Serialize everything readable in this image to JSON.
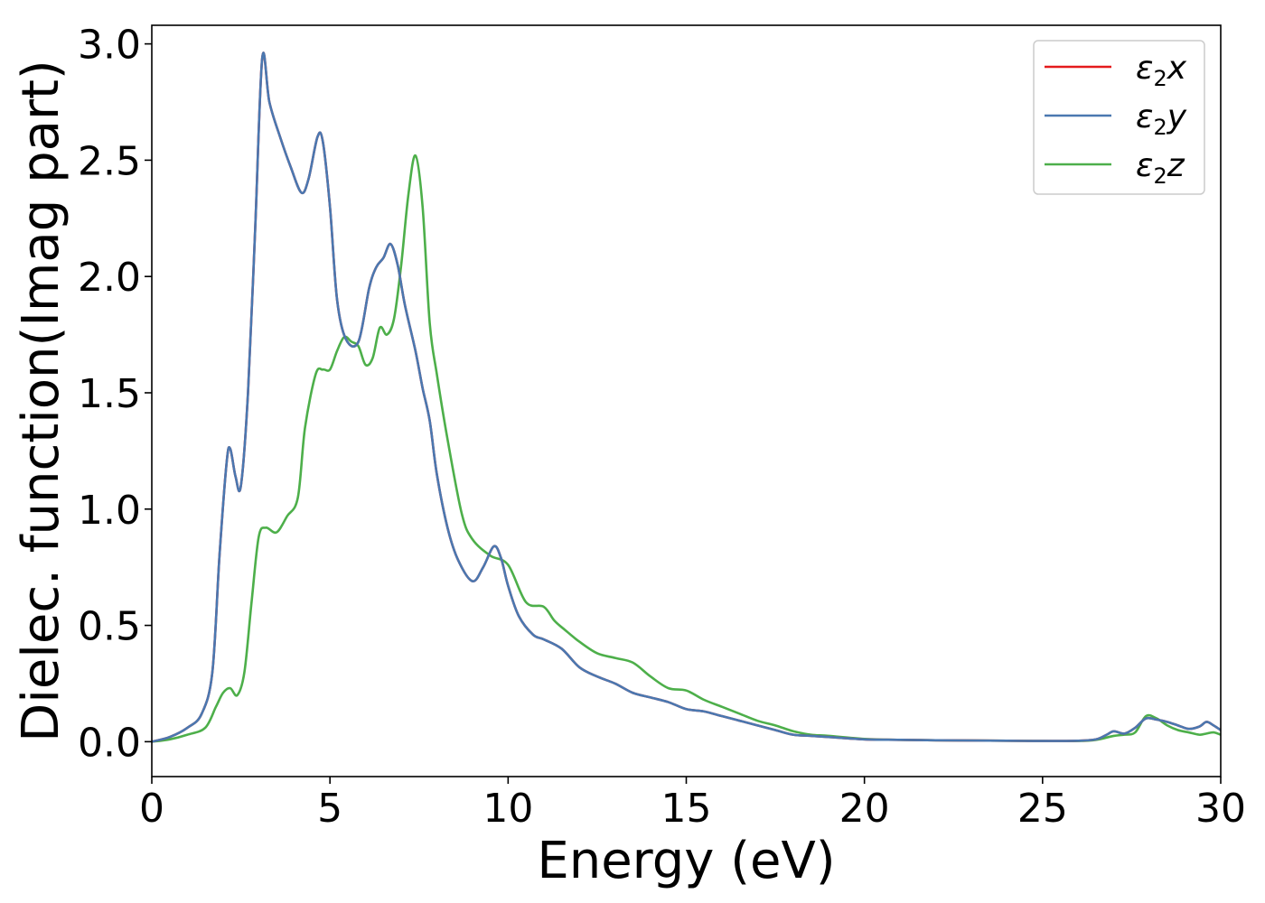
{
  "chart_data": {
    "type": "line",
    "title": "",
    "xlabel": "Energy (eV)",
    "ylabel": "Dielec. function(Imag part)",
    "xlim": [
      0,
      30
    ],
    "ylim": [
      -0.15,
      3.08
    ],
    "xticks": [
      0,
      5,
      10,
      15,
      20,
      25,
      30
    ],
    "xtick_labels": [
      "0",
      "5",
      "10",
      "15",
      "20",
      "25",
      "30"
    ],
    "yticks": [
      0.0,
      0.5,
      1.0,
      1.5,
      2.0,
      2.5,
      3.0
    ],
    "ytick_labels": [
      "0.0",
      "0.5",
      "1.0",
      "1.5",
      "2.0",
      "2.5",
      "3.0"
    ],
    "grid": false,
    "legend_position": "top-right",
    "series": [
      {
        "name": "ε₂x",
        "legend_base": "ε",
        "legend_sub": "2",
        "legend_var": "x",
        "color": "#e41a1c",
        "x": [
          0,
          0.5,
          1.0,
          1.4,
          1.7,
          1.9,
          2.1,
          2.2,
          2.35,
          2.5,
          2.7,
          2.9,
          3.1,
          3.3,
          3.6,
          3.9,
          4.2,
          4.4,
          4.65,
          4.8,
          5.0,
          5.2,
          5.45,
          5.8,
          6.1,
          6.3,
          6.5,
          6.7,
          6.9,
          7.1,
          7.4,
          7.6,
          7.8,
          8.0,
          8.3,
          8.6,
          9.0,
          9.3,
          9.6,
          9.8,
          10.0,
          10.3,
          10.7,
          11.0,
          11.5,
          12.0,
          12.5,
          13.0,
          13.5,
          14.0,
          14.5,
          15.0,
          15.5,
          16.0,
          16.5,
          17.0,
          17.5,
          18.0,
          18.5,
          19.0,
          20.0,
          21.0,
          22.0,
          23.0,
          24.0,
          25.0,
          26.0,
          26.5,
          26.8,
          27.0,
          27.3,
          27.6,
          27.9,
          28.2,
          28.5,
          28.8,
          29.1,
          29.4,
          29.6,
          29.8,
          30.0
        ],
        "y": [
          0.0,
          0.02,
          0.06,
          0.12,
          0.3,
          0.8,
          1.2,
          1.26,
          1.14,
          1.1,
          1.5,
          2.2,
          2.94,
          2.75,
          2.6,
          2.47,
          2.36,
          2.42,
          2.6,
          2.58,
          2.3,
          1.9,
          1.73,
          1.72,
          1.95,
          2.04,
          2.08,
          2.14,
          2.05,
          1.88,
          1.68,
          1.52,
          1.38,
          1.15,
          0.92,
          0.78,
          0.69,
          0.75,
          0.84,
          0.79,
          0.67,
          0.54,
          0.46,
          0.44,
          0.4,
          0.32,
          0.28,
          0.25,
          0.21,
          0.19,
          0.17,
          0.14,
          0.13,
          0.11,
          0.09,
          0.07,
          0.05,
          0.03,
          0.025,
          0.02,
          0.01,
          0.008,
          0.006,
          0.005,
          0.004,
          0.003,
          0.004,
          0.01,
          0.03,
          0.045,
          0.035,
          0.06,
          0.1,
          0.095,
          0.085,
          0.07,
          0.055,
          0.065,
          0.085,
          0.07,
          0.05
        ]
      },
      {
        "name": "ε₂y",
        "legend_base": "ε",
        "legend_sub": "2",
        "legend_var": "y",
        "color": "#4a78b0",
        "x": [
          0,
          0.5,
          1.0,
          1.4,
          1.7,
          1.9,
          2.1,
          2.2,
          2.35,
          2.5,
          2.7,
          2.9,
          3.1,
          3.3,
          3.6,
          3.9,
          4.2,
          4.4,
          4.65,
          4.8,
          5.0,
          5.2,
          5.45,
          5.8,
          6.1,
          6.3,
          6.5,
          6.7,
          6.9,
          7.1,
          7.4,
          7.6,
          7.8,
          8.0,
          8.3,
          8.6,
          9.0,
          9.3,
          9.6,
          9.8,
          10.0,
          10.3,
          10.7,
          11.0,
          11.5,
          12.0,
          12.5,
          13.0,
          13.5,
          14.0,
          14.5,
          15.0,
          15.5,
          16.0,
          16.5,
          17.0,
          17.5,
          18.0,
          18.5,
          19.0,
          20.0,
          21.0,
          22.0,
          23.0,
          24.0,
          25.0,
          26.0,
          26.5,
          26.8,
          27.0,
          27.3,
          27.6,
          27.9,
          28.2,
          28.5,
          28.8,
          29.1,
          29.4,
          29.6,
          29.8,
          30.0
        ],
        "y": [
          0.0,
          0.02,
          0.06,
          0.12,
          0.3,
          0.8,
          1.2,
          1.26,
          1.14,
          1.1,
          1.5,
          2.2,
          2.94,
          2.75,
          2.6,
          2.47,
          2.36,
          2.42,
          2.6,
          2.58,
          2.3,
          1.9,
          1.73,
          1.72,
          1.95,
          2.04,
          2.08,
          2.14,
          2.05,
          1.88,
          1.68,
          1.52,
          1.38,
          1.15,
          0.92,
          0.78,
          0.69,
          0.75,
          0.84,
          0.79,
          0.67,
          0.54,
          0.46,
          0.44,
          0.4,
          0.32,
          0.28,
          0.25,
          0.21,
          0.19,
          0.17,
          0.14,
          0.13,
          0.11,
          0.09,
          0.07,
          0.05,
          0.03,
          0.025,
          0.02,
          0.01,
          0.008,
          0.006,
          0.005,
          0.004,
          0.003,
          0.004,
          0.01,
          0.03,
          0.045,
          0.035,
          0.06,
          0.1,
          0.095,
          0.085,
          0.07,
          0.055,
          0.065,
          0.085,
          0.07,
          0.05
        ]
      },
      {
        "name": "ε₂z",
        "legend_base": "ε",
        "legend_sub": "2",
        "legend_var": "z",
        "color": "#4daf4a",
        "x": [
          0,
          0.5,
          1.0,
          1.5,
          1.8,
          2.0,
          2.2,
          2.4,
          2.6,
          2.8,
          3.0,
          3.2,
          3.5,
          3.8,
          4.1,
          4.3,
          4.6,
          4.8,
          5.0,
          5.2,
          5.4,
          5.6,
          5.8,
          6.0,
          6.2,
          6.4,
          6.6,
          6.8,
          7.0,
          7.2,
          7.4,
          7.6,
          7.8,
          8.0,
          8.3,
          8.7,
          9.0,
          9.5,
          10.0,
          10.5,
          11.0,
          11.3,
          11.6,
          12.0,
          12.5,
          13.0,
          13.5,
          14.0,
          14.5,
          15.0,
          15.5,
          16.0,
          16.5,
          17.0,
          17.5,
          18.0,
          18.5,
          19.0,
          20.0,
          21.0,
          22.0,
          23.0,
          24.0,
          25.0,
          26.0,
          26.5,
          27.0,
          27.3,
          27.6,
          27.9,
          28.2,
          28.5,
          28.8,
          29.1,
          29.4,
          29.6,
          29.8,
          30.0
        ],
        "y": [
          0.0,
          0.01,
          0.03,
          0.06,
          0.15,
          0.21,
          0.23,
          0.2,
          0.3,
          0.6,
          0.88,
          0.92,
          0.9,
          0.97,
          1.05,
          1.35,
          1.58,
          1.6,
          1.6,
          1.68,
          1.74,
          1.72,
          1.7,
          1.62,
          1.65,
          1.78,
          1.75,
          1.82,
          2.05,
          2.35,
          2.52,
          2.3,
          1.8,
          1.58,
          1.3,
          0.98,
          0.87,
          0.8,
          0.76,
          0.6,
          0.58,
          0.52,
          0.48,
          0.43,
          0.38,
          0.36,
          0.34,
          0.28,
          0.23,
          0.22,
          0.18,
          0.15,
          0.12,
          0.09,
          0.07,
          0.045,
          0.03,
          0.025,
          0.012,
          0.008,
          0.006,
          0.005,
          0.004,
          0.003,
          0.003,
          0.008,
          0.025,
          0.03,
          0.04,
          0.11,
          0.1,
          0.07,
          0.05,
          0.04,
          0.03,
          0.035,
          0.04,
          0.03
        ]
      }
    ]
  }
}
